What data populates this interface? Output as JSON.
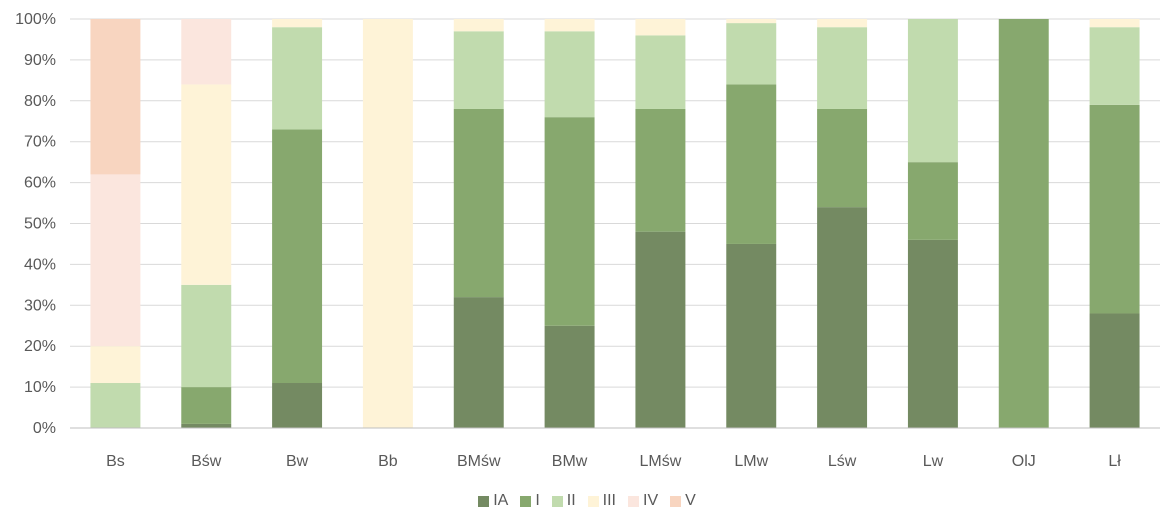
{
  "chart_data": {
    "type": "bar",
    "stacked": true,
    "percent": true,
    "categories": [
      "Bs",
      "Bśw",
      "Bw",
      "Bb",
      "BMśw",
      "BMw",
      "LMśw",
      "LMw",
      "Lśw",
      "Lw",
      "OlJ",
      "Lł"
    ],
    "ylim": [
      0,
      100
    ],
    "yticks": [
      "0%",
      "10%",
      "20%",
      "30%",
      "40%",
      "50%",
      "60%",
      "70%",
      "80%",
      "90%",
      "100%"
    ],
    "grid": true,
    "legend_position": "bottom",
    "series": [
      {
        "name": "IA",
        "color": "#748a62",
        "values": [
          0,
          1,
          11,
          0,
          32,
          25,
          48,
          45,
          54,
          46,
          0,
          28
        ]
      },
      {
        "name": "I",
        "color": "#87a86e",
        "values": [
          0,
          9,
          62,
          0,
          46,
          51,
          30,
          39,
          24,
          19,
          100,
          51
        ]
      },
      {
        "name": "II",
        "color": "#c1dbae",
        "values": [
          11,
          25,
          25,
          0,
          19,
          21,
          18,
          15,
          20,
          35,
          0,
          19
        ]
      },
      {
        "name": "III",
        "color": "#fef3d7",
        "values": [
          9,
          49,
          2,
          100,
          3,
          3,
          4,
          1,
          2,
          0,
          0,
          2
        ]
      },
      {
        "name": "IV",
        "color": "#fbe6de",
        "values": [
          42,
          16,
          0,
          0,
          0,
          0,
          0,
          0,
          0,
          0,
          0,
          0
        ]
      },
      {
        "name": "V",
        "color": "#f8d5c0",
        "values": [
          38,
          0,
          0,
          0,
          0,
          0,
          0,
          0,
          0,
          0,
          0,
          0
        ]
      }
    ]
  }
}
